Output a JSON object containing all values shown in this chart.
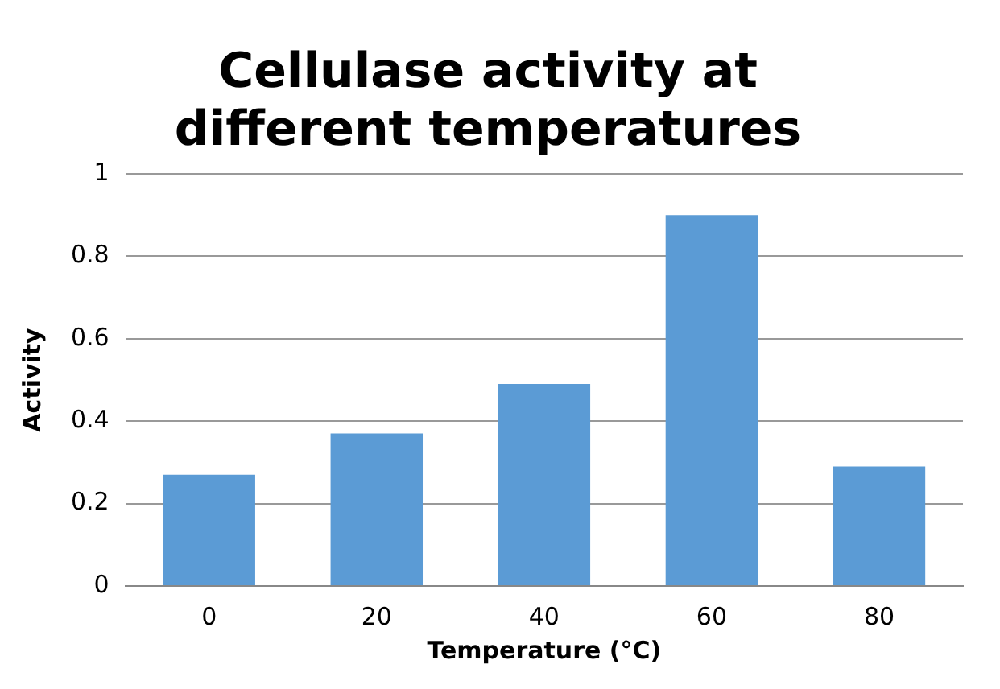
{
  "chart_data": {
    "type": "bar",
    "title": "Cellulase activity at different temperatures",
    "xlabel": "Temperature (°C)",
    "ylabel": "Activity",
    "categories": [
      "0",
      "20",
      "40",
      "60",
      "80"
    ],
    "values": [
      0.27,
      0.37,
      0.49,
      0.9,
      0.29
    ],
    "color": "#5b9bd5",
    "ylim": [
      0,
      1
    ],
    "yticks": [
      0,
      0.2,
      0.4,
      0.6,
      0.8,
      1
    ],
    "grid": "y",
    "legend": false
  }
}
